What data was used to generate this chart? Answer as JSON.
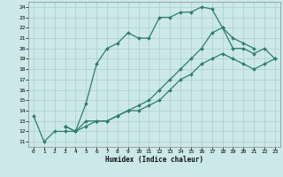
{
  "xlabel": "Humidex (Indice chaleur)",
  "bg_color": "#cce8e8",
  "line_color": "#2e7d6e",
  "grid_color": "#aacfcf",
  "xlim": [
    -0.5,
    23.5
  ],
  "ylim": [
    10.5,
    24.5
  ],
  "xticks": [
    0,
    1,
    2,
    3,
    4,
    5,
    6,
    7,
    8,
    9,
    10,
    11,
    12,
    13,
    14,
    15,
    16,
    17,
    18,
    19,
    20,
    21,
    22,
    23
  ],
  "yticks": [
    11,
    12,
    13,
    14,
    15,
    16,
    17,
    18,
    19,
    20,
    21,
    22,
    23,
    24
  ],
  "line1_x": [
    0,
    1,
    2,
    3,
    4,
    5,
    6,
    7,
    8,
    9,
    10,
    11,
    12,
    13,
    14,
    15,
    16,
    17,
    18,
    19,
    20,
    21
  ],
  "line1_y": [
    13.5,
    11,
    12,
    12,
    12,
    14.7,
    18.5,
    20,
    20.5,
    21.5,
    21,
    21,
    23,
    23,
    23.5,
    23.5,
    24,
    23.8,
    22,
    21,
    20.5,
    20
  ],
  "line2_x": [
    3,
    4,
    5,
    6,
    7,
    8,
    9,
    10,
    11,
    12,
    13,
    14,
    15,
    16,
    17,
    18,
    19,
    20,
    21,
    22,
    23
  ],
  "line2_y": [
    12.5,
    12,
    13,
    13,
    13,
    13.5,
    14,
    14.5,
    15,
    16,
    17,
    18,
    19,
    20,
    21.5,
    22,
    20,
    20,
    19.5,
    20,
    19
  ],
  "line3_x": [
    3,
    4,
    5,
    6,
    7,
    8,
    9,
    10,
    11,
    12,
    13,
    14,
    15,
    16,
    17,
    18,
    19,
    20,
    21,
    22,
    23
  ],
  "line3_y": [
    12.5,
    12,
    12.5,
    13,
    13,
    13.5,
    14,
    14,
    14.5,
    15,
    16,
    17,
    17.5,
    18.5,
    19,
    19.5,
    19,
    18.5,
    18,
    18.5,
    19
  ]
}
